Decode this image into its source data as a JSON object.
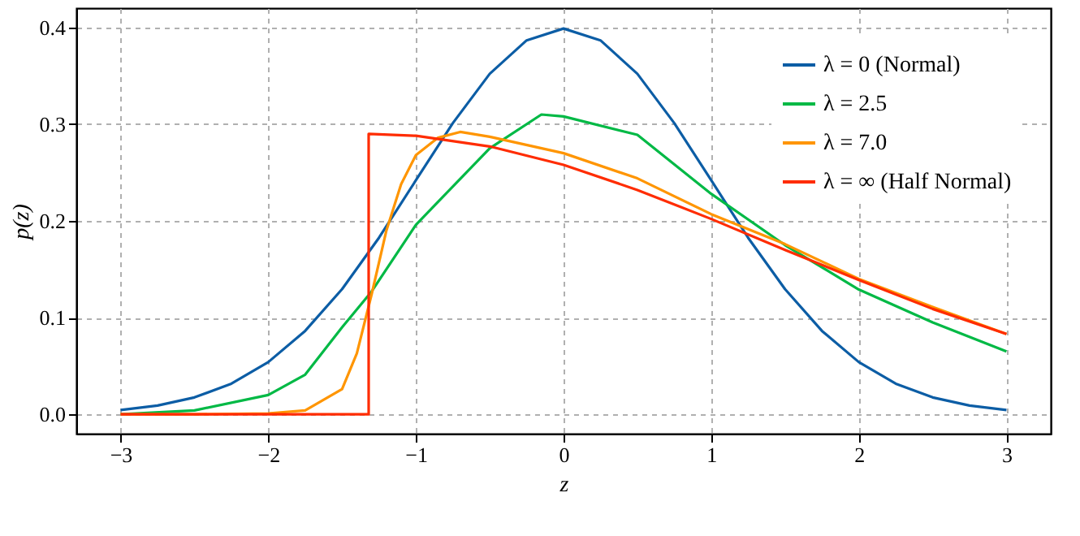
{
  "chart_data": {
    "type": "line",
    "xlabel": "z",
    "ylabel": "p(z)",
    "xlim": [
      -3.3,
      3.3
    ],
    "ylim": [
      -0.02,
      0.42
    ],
    "xticks": [
      {
        "value": -3,
        "label": "−3"
      },
      {
        "value": -2,
        "label": "−2"
      },
      {
        "value": -1,
        "label": "−1"
      },
      0,
      1,
      2,
      3
    ],
    "yticks": [
      {
        "value": 0,
        "label": "0.0"
      },
      0.1,
      0.2,
      0.3,
      0.4
    ],
    "grid": true,
    "legend": "top right",
    "line_style": "solid",
    "marker": "none",
    "series": [
      {
        "name": "λ = 0 (Normal)",
        "color": "#0c5da5",
        "x": [
          -3,
          -2.75,
          -2.5,
          -2.25,
          -2,
          -1.75,
          -1.5,
          -1.25,
          -1,
          -0.75,
          -0.5,
          -0.25,
          0,
          0.25,
          0.5,
          0.75,
          1,
          1.25,
          1.5,
          1.75,
          2,
          2.25,
          2.5,
          2.75,
          3
        ],
        "values": [
          0.0044,
          0.0091,
          0.0175,
          0.0317,
          0.054,
          0.0863,
          0.1295,
          0.1826,
          0.242,
          0.3011,
          0.3521,
          0.3867,
          0.3989,
          0.3867,
          0.3521,
          0.3011,
          0.242,
          0.1826,
          0.1295,
          0.0863,
          0.054,
          0.0317,
          0.0175,
          0.0091,
          0.0044
        ]
      },
      {
        "name": "λ = 2.5",
        "color": "#00b945",
        "x": [
          -3,
          -2.5,
          -2,
          -1.75,
          -1.5,
          -1.3,
          -1,
          -0.5,
          -0.15,
          0,
          0.5,
          1,
          1.5,
          2,
          2.5,
          3
        ],
        "values": [
          0.0,
          0.004,
          0.02,
          0.041,
          0.09,
          0.127,
          0.196,
          0.275,
          0.31,
          0.308,
          0.289,
          0.228,
          0.175,
          0.129,
          0.095,
          0.065
        ]
      },
      {
        "name": "λ = 7.0",
        "color": "#ff9500",
        "x": [
          -3,
          -2.5,
          -2,
          -1.75,
          -1.5,
          -1.4,
          -1.3,
          -1.2,
          -1.1,
          -1,
          -0.85,
          -0.7,
          -0.5,
          0,
          0.5,
          1,
          1.5,
          2,
          2.5,
          3
        ],
        "values": [
          0.0,
          0.0,
          0.001,
          0.004,
          0.026,
          0.063,
          0.124,
          0.19,
          0.238,
          0.268,
          0.286,
          0.292,
          0.287,
          0.27,
          0.244,
          0.207,
          0.176,
          0.14,
          0.111,
          0.083
        ]
      },
      {
        "name": "λ = ∞ (Half Normal)",
        "color": "#ff2c00",
        "x": [
          -3,
          -1.32,
          -1.32,
          -1,
          -0.5,
          0,
          0.5,
          1,
          1.5,
          2,
          2.5,
          3
        ],
        "values": [
          0.0,
          0.0,
          0.29,
          0.288,
          0.277,
          0.258,
          0.232,
          0.202,
          0.17,
          0.139,
          0.109,
          0.083
        ]
      }
    ]
  }
}
